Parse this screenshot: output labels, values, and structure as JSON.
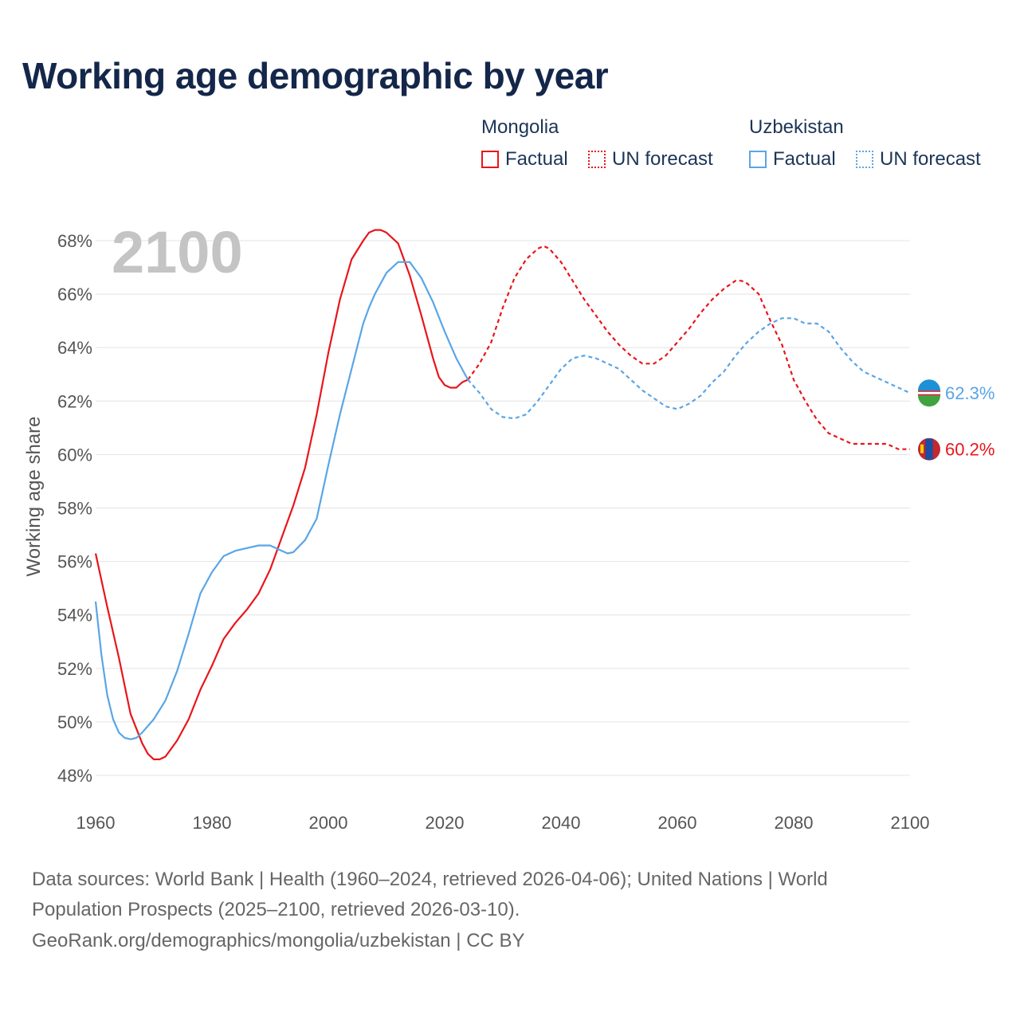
{
  "title": "Working age demographic by year",
  "legend": {
    "groups": [
      {
        "country": "Mongolia",
        "color": "#e8161b",
        "factual_label": "Factual",
        "forecast_label": "UN forecast"
      },
      {
        "country": "Uzbekistan",
        "color": "#5aa5e6",
        "factual_label": "Factual",
        "forecast_label": "UN forecast"
      }
    ]
  },
  "year_watermark": "2100",
  "footer": {
    "line1": "Data sources: World Bank | Health (1960–2024, retrieved 2026-04-06); United Nations | World",
    "line2": "Population Prospects (2025–2100, retrieved 2026-03-10).",
    "line3": "GeoRank.org/demographics/mongolia/uzbekistan | CC BY"
  },
  "chart_data": {
    "type": "line",
    "title": "Working age demographic by year",
    "xlabel": "",
    "ylabel": "Working age share",
    "xlim": [
      1960,
      2100
    ],
    "ylim": [
      47.5,
      69
    ],
    "x_ticks": [
      1960,
      1980,
      2000,
      2020,
      2040,
      2060,
      2080,
      2100
    ],
    "x_tick_labels": [
      "1960",
      "1980",
      "2000",
      "2020",
      "2040",
      "2060",
      "2080",
      "2100"
    ],
    "y_ticks": [
      48,
      50,
      52,
      54,
      56,
      58,
      60,
      62,
      64,
      66,
      68
    ],
    "y_tick_labels": [
      "48%",
      "50%",
      "52%",
      "54%",
      "56%",
      "58%",
      "60%",
      "62%",
      "64%",
      "66%",
      "68%"
    ],
    "grid": true,
    "series": [
      {
        "name": "Mongolia",
        "color": "#e8161b",
        "end_label": "60.2%",
        "factual": {
          "x": [
            1960,
            1962,
            1964,
            1966,
            1968,
            1969,
            1970,
            1971,
            1972,
            1974,
            1976,
            1978,
            1980,
            1982,
            1984,
            1986,
            1988,
            1990,
            1992,
            1994,
            1996,
            1998,
            2000,
            2002,
            2004,
            2006,
            2007,
            2008,
            2009,
            2010,
            2012,
            2014,
            2016,
            2018,
            2019,
            2020,
            2021,
            2022,
            2023,
            2024
          ],
          "y": [
            56.3,
            54.3,
            52.4,
            50.3,
            49.2,
            48.8,
            48.6,
            48.6,
            48.7,
            49.3,
            50.1,
            51.2,
            52.1,
            53.1,
            53.7,
            54.2,
            54.8,
            55.7,
            56.9,
            58.1,
            59.5,
            61.5,
            63.8,
            65.8,
            67.3,
            68.0,
            68.3,
            68.4,
            68.4,
            68.3,
            67.9,
            66.7,
            65.2,
            63.6,
            62.9,
            62.6,
            62.5,
            62.5,
            62.7,
            62.8
          ]
        },
        "forecast": {
          "x": [
            2024,
            2026,
            2028,
            2030,
            2032,
            2034,
            2036,
            2037,
            2038,
            2040,
            2042,
            2044,
            2046,
            2048,
            2050,
            2052,
            2054,
            2056,
            2058,
            2060,
            2062,
            2064,
            2066,
            2068,
            2070,
            2071,
            2072,
            2074,
            2076,
            2078,
            2080,
            2082,
            2084,
            2086,
            2088,
            2090,
            2092,
            2094,
            2096,
            2098,
            2100
          ],
          "y": [
            62.8,
            63.4,
            64.2,
            65.5,
            66.6,
            67.3,
            67.7,
            67.8,
            67.7,
            67.2,
            66.5,
            65.8,
            65.2,
            64.6,
            64.1,
            63.7,
            63.4,
            63.4,
            63.7,
            64.2,
            64.7,
            65.3,
            65.8,
            66.2,
            66.5,
            66.5,
            66.4,
            66.0,
            65.0,
            64.1,
            62.8,
            62.0,
            61.3,
            60.8,
            60.6,
            60.4,
            60.4,
            60.4,
            60.4,
            60.2,
            60.2
          ]
        }
      },
      {
        "name": "Uzbekistan",
        "color": "#5aa5e6",
        "end_label": "62.3%",
        "factual": {
          "x": [
            1960,
            1961,
            1962,
            1963,
            1964,
            1965,
            1966,
            1967,
            1968,
            1970,
            1972,
            1974,
            1976,
            1978,
            1980,
            1982,
            1984,
            1986,
            1988,
            1990,
            1992,
            1993,
            1994,
            1996,
            1998,
            2000,
            2002,
            2004,
            2006,
            2007,
            2008,
            2010,
            2012,
            2013,
            2014,
            2015,
            2016,
            2018,
            2020,
            2022,
            2024
          ],
          "y": [
            54.5,
            52.5,
            51.0,
            50.1,
            49.6,
            49.4,
            49.35,
            49.4,
            49.6,
            50.1,
            50.8,
            51.9,
            53.3,
            54.8,
            55.6,
            56.2,
            56.4,
            56.5,
            56.6,
            56.6,
            56.4,
            56.3,
            56.35,
            56.8,
            57.6,
            59.6,
            61.5,
            63.2,
            64.9,
            65.5,
            66.0,
            66.8,
            67.2,
            67.2,
            67.2,
            66.9,
            66.6,
            65.7,
            64.6,
            63.6,
            62.8
          ]
        },
        "forecast": {
          "x": [
            2024,
            2026,
            2028,
            2030,
            2032,
            2034,
            2036,
            2038,
            2040,
            2042,
            2044,
            2046,
            2048,
            2050,
            2052,
            2054,
            2056,
            2058,
            2060,
            2062,
            2064,
            2066,
            2068,
            2070,
            2072,
            2074,
            2076,
            2078,
            2080,
            2082,
            2084,
            2086,
            2088,
            2090,
            2092,
            2094,
            2096,
            2098,
            2100
          ],
          "y": [
            62.8,
            62.3,
            61.7,
            61.4,
            61.35,
            61.5,
            62.0,
            62.6,
            63.2,
            63.6,
            63.7,
            63.6,
            63.4,
            63.2,
            62.8,
            62.4,
            62.1,
            61.8,
            61.7,
            61.9,
            62.2,
            62.7,
            63.1,
            63.7,
            64.2,
            64.6,
            64.9,
            65.1,
            65.1,
            64.9,
            64.9,
            64.6,
            64.0,
            63.5,
            63.1,
            62.9,
            62.7,
            62.5,
            62.3
          ]
        }
      }
    ]
  }
}
